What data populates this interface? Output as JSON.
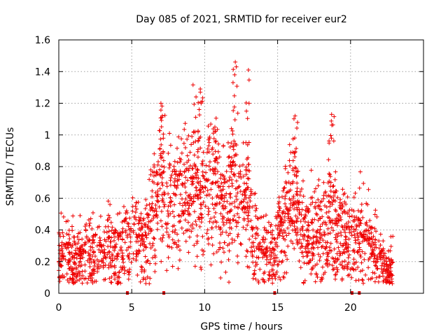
{
  "chart_data": {
    "type": "scatter",
    "title": "Day 085 of 2021, SRMTID for receiver eur2",
    "xlabel": "GPS time / hours",
    "ylabel": "SRMTID / TECUs",
    "xlim": [
      0,
      25
    ],
    "ylim": [
      0,
      1.6
    ],
    "xticks": [
      0,
      5,
      10,
      15,
      20
    ],
    "yticks": [
      0,
      0.2,
      0.4,
      0.6,
      0.8,
      1,
      1.2,
      1.4,
      1.6
    ],
    "xtick_labels": [
      "0",
      "5",
      "10",
      "15",
      "20"
    ],
    "ytick_labels": [
      "0",
      "0.2",
      "0.4",
      "0.6",
      "0.8",
      "1",
      "1.2",
      "1.4",
      "1.6"
    ],
    "grid": true,
    "marker": "+",
    "color": "#ee0000",
    "series": [
      {
        "name": "SRMTID",
        "trend": [
          [
            0.0,
            0.22
          ],
          [
            0.5,
            0.26
          ],
          [
            1.0,
            0.22
          ],
          [
            1.5,
            0.24
          ],
          [
            2.0,
            0.25
          ],
          [
            2.5,
            0.24
          ],
          [
            3.0,
            0.24
          ],
          [
            3.5,
            0.27
          ],
          [
            4.0,
            0.29
          ],
          [
            4.5,
            0.32
          ],
          [
            5.0,
            0.35
          ],
          [
            5.5,
            0.33
          ],
          [
            6.0,
            0.36
          ],
          [
            6.5,
            0.5
          ],
          [
            7.0,
            0.72
          ],
          [
            7.5,
            0.55
          ],
          [
            8.0,
            0.6
          ],
          [
            8.5,
            0.62
          ],
          [
            9.0,
            0.7
          ],
          [
            9.5,
            0.66
          ],
          [
            10.0,
            0.58
          ],
          [
            10.5,
            0.65
          ],
          [
            11.0,
            0.6
          ],
          [
            11.5,
            0.55
          ],
          [
            12.0,
            0.72
          ],
          [
            12.5,
            0.55
          ],
          [
            13.0,
            0.5
          ],
          [
            13.5,
            0.35
          ],
          [
            14.0,
            0.26
          ],
          [
            14.5,
            0.24
          ],
          [
            15.0,
            0.3
          ],
          [
            15.5,
            0.45
          ],
          [
            16.0,
            0.6
          ],
          [
            16.5,
            0.45
          ],
          [
            17.0,
            0.38
          ],
          [
            17.5,
            0.36
          ],
          [
            18.0,
            0.38
          ],
          [
            18.5,
            0.45
          ],
          [
            19.0,
            0.42
          ],
          [
            19.5,
            0.38
          ],
          [
            20.0,
            0.36
          ],
          [
            20.5,
            0.35
          ],
          [
            21.0,
            0.4
          ],
          [
            21.5,
            0.28
          ],
          [
            22.0,
            0.2
          ],
          [
            22.5,
            0.16
          ],
          [
            22.9,
            0.16
          ]
        ],
        "peaks": [
          {
            "x": 7.0,
            "y": 1.2
          },
          {
            "x": 9.7,
            "y": 1.29
          },
          {
            "x": 10.7,
            "y": 1.05
          },
          {
            "x": 12.1,
            "y": 1.46
          },
          {
            "x": 13.0,
            "y": 1.41
          },
          {
            "x": 16.2,
            "y": 1.12
          },
          {
            "x": 18.7,
            "y": 1.13
          }
        ],
        "points": []
      }
    ],
    "gap_markers_x": [
      4.7,
      7.2,
      14.8,
      20.1,
      20.6
    ]
  }
}
